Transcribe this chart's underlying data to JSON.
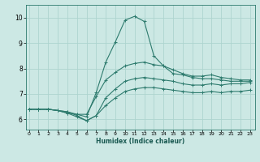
{
  "xlabel": "Humidex (Indice chaleur)",
  "bg_color": "#cce8e4",
  "grid_color": "#aed4cf",
  "line_color": "#2e7b6e",
  "x_ticks": [
    0,
    1,
    2,
    3,
    4,
    5,
    6,
    7,
    8,
    9,
    10,
    11,
    12,
    13,
    14,
    15,
    16,
    17,
    18,
    19,
    20,
    21,
    22,
    23
  ],
  "y_ticks": [
    6,
    7,
    8,
    9,
    10
  ],
  "xlim": [
    -0.3,
    23.5
  ],
  "ylim": [
    5.6,
    10.5
  ],
  "curves": [
    {
      "x": [
        0,
        1,
        2,
        3,
        4,
        5,
        6,
        7,
        8,
        9,
        10,
        11,
        12,
        13,
        14,
        15,
        16,
        17,
        18,
        19,
        20,
        21,
        22,
        23
      ],
      "y": [
        6.4,
        6.4,
        6.4,
        6.35,
        6.3,
        6.2,
        6.1,
        7.05,
        8.25,
        9.05,
        9.9,
        10.05,
        9.85,
        8.5,
        8.1,
        7.8,
        7.75,
        7.65,
        7.6,
        7.6,
        7.55,
        7.5,
        7.5,
        7.5
      ]
    },
    {
      "x": [
        0,
        1,
        2,
        3,
        4,
        5,
        6,
        7,
        8,
        9,
        10,
        11,
        12,
        13,
        14,
        15,
        16,
        17,
        18,
        19,
        20,
        21,
        22,
        23
      ],
      "y": [
        6.4,
        6.4,
        6.4,
        6.35,
        6.25,
        6.2,
        6.2,
        6.9,
        7.55,
        7.85,
        8.1,
        8.2,
        8.25,
        8.15,
        8.1,
        7.95,
        7.8,
        7.7,
        7.7,
        7.75,
        7.65,
        7.6,
        7.55,
        7.55
      ]
    },
    {
      "x": [
        0,
        1,
        2,
        3,
        4,
        5,
        6,
        7,
        8,
        9,
        10,
        11,
        12,
        13,
        14,
        15,
        16,
        17,
        18,
        19,
        20,
        21,
        22,
        23
      ],
      "y": [
        6.4,
        6.4,
        6.4,
        6.35,
        6.3,
        6.15,
        5.95,
        6.15,
        6.85,
        7.2,
        7.5,
        7.6,
        7.65,
        7.6,
        7.55,
        7.5,
        7.4,
        7.35,
        7.35,
        7.4,
        7.35,
        7.4,
        7.4,
        7.45
      ]
    },
    {
      "x": [
        0,
        1,
        2,
        3,
        4,
        5,
        6,
        7,
        8,
        9,
        10,
        11,
        12,
        13,
        14,
        15,
        16,
        17,
        18,
        19,
        20,
        21,
        22,
        23
      ],
      "y": [
        6.4,
        6.4,
        6.4,
        6.35,
        6.25,
        6.1,
        5.95,
        6.15,
        6.55,
        6.85,
        7.1,
        7.2,
        7.25,
        7.25,
        7.2,
        7.15,
        7.1,
        7.05,
        7.05,
        7.1,
        7.05,
        7.1,
        7.1,
        7.15
      ]
    }
  ]
}
